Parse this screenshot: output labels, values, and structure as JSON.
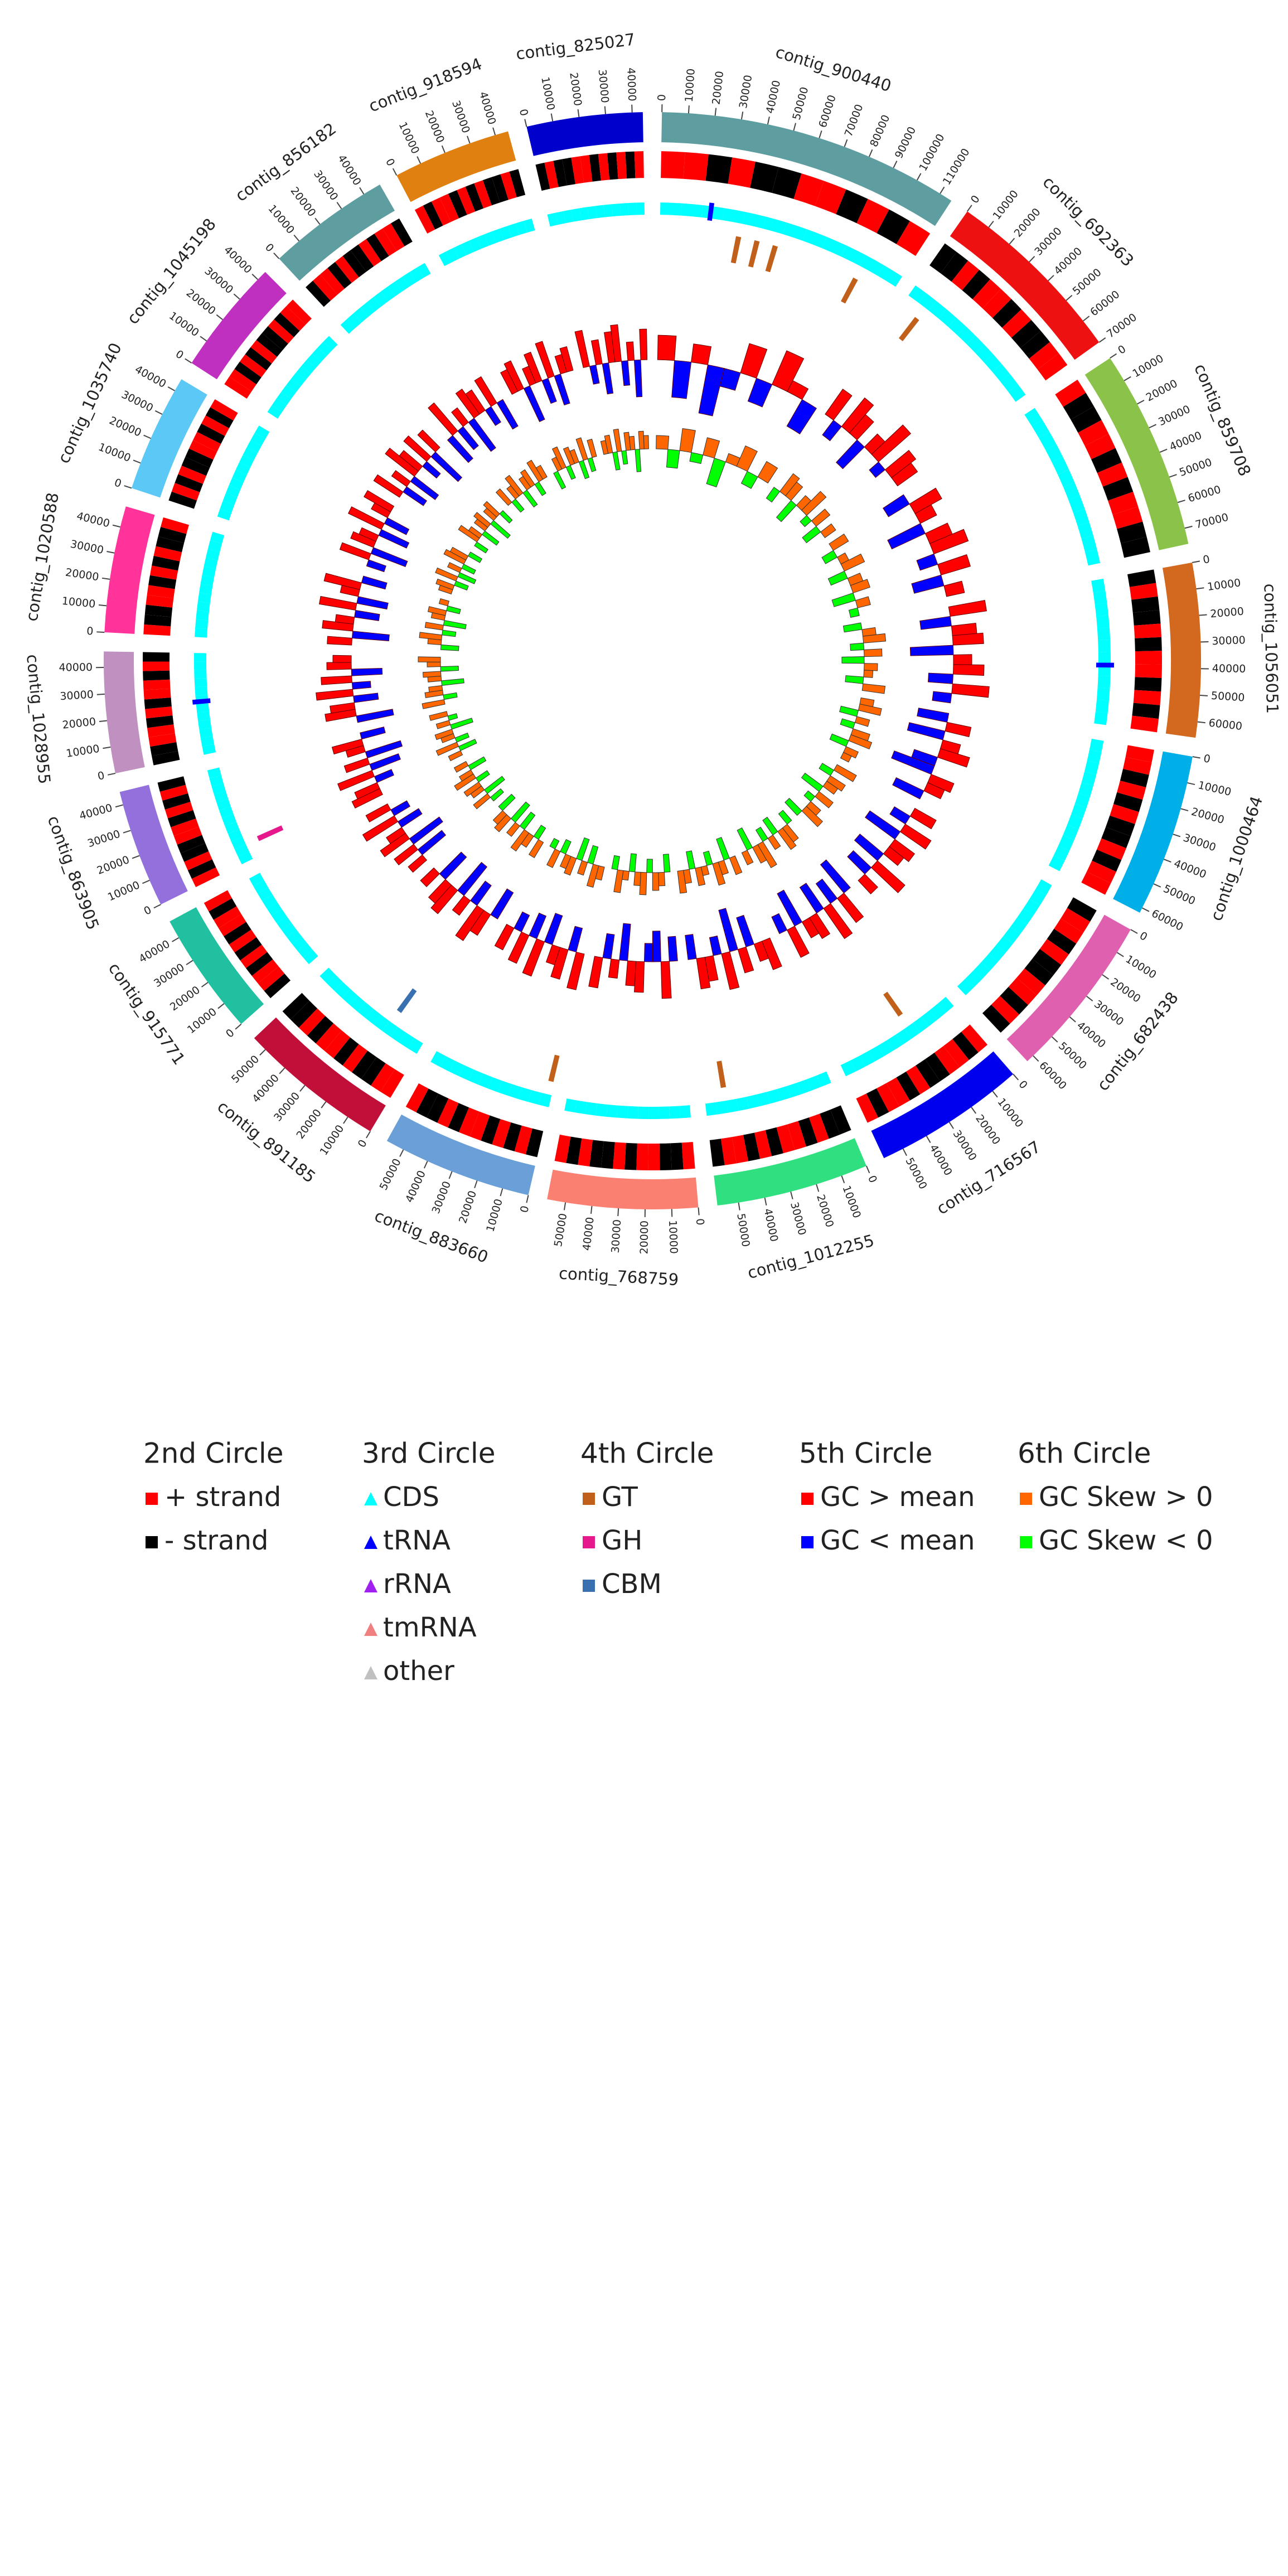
{
  "chart_data": {
    "type": "circos",
    "contigs": [
      {
        "name": "contig_900440",
        "length": 115000,
        "color": "#5f9ea0",
        "ticks": [
          0,
          10000,
          20000,
          30000,
          40000,
          50000,
          60000,
          70000,
          80000,
          90000,
          100000,
          110000
        ],
        "strand": [
          1,
          1,
          -1,
          1,
          -1,
          -1,
          1,
          1,
          -1,
          1,
          -1,
          1
        ],
        "gc": [
          0.4,
          -0.6,
          0.3,
          -0.8,
          -0.3,
          0.5,
          -0.4,
          0.6,
          0.2,
          -0.5
        ],
        "skew": [
          0.3,
          -0.4,
          0.5,
          -0.2,
          0.4,
          -0.6,
          0.2,
          0.5,
          -0.3,
          0.4
        ]
      },
      {
        "name": "contig_692363",
        "length": 70000,
        "color": "#ee1111",
        "ticks": [
          0,
          10000,
          20000,
          30000,
          40000,
          50000,
          60000,
          70000
        ],
        "strand": [
          -1,
          -1,
          1,
          -1,
          1,
          1,
          -1,
          1,
          -1,
          -1,
          1,
          1
        ],
        "gc": [
          0.5,
          -0.3,
          0.6,
          0.4,
          -0.5,
          0.3,
          0.7,
          -0.2,
          0.5,
          0.4
        ],
        "skew": [
          -0.3,
          0.5,
          0.4,
          -0.5,
          0.3,
          0.6,
          -0.2,
          0.4,
          -0.4,
          0.3
        ]
      },
      {
        "name": "contig_859708",
        "length": 76000,
        "color": "#8bc34a",
        "ticks": [
          0,
          10000,
          20000,
          30000,
          40000,
          50000,
          60000,
          70000
        ],
        "strand": [
          1,
          -1,
          -1,
          1,
          1,
          -1,
          1,
          -1,
          1,
          1,
          -1,
          -1
        ],
        "gc": [
          -0.4,
          0.5,
          0.3,
          -0.6,
          0.4,
          0.6,
          -0.3,
          0.5,
          -0.5,
          0.3
        ],
        "skew": [
          0.4,
          -0.3,
          0.2,
          0.5,
          -0.4,
          0.3,
          0.4,
          -0.5,
          0.3,
          -0.2
        ]
      },
      {
        "name": "contig_1056051",
        "length": 66000,
        "color": "#d2691e",
        "ticks": [
          0,
          10000,
          20000,
          30000,
          40000,
          50000,
          60000
        ],
        "strand": [
          -1,
          1,
          -1,
          -1,
          1,
          -1,
          1,
          1,
          -1,
          1,
          -1,
          1
        ],
        "gc": [
          0.6,
          -0.5,
          0.4,
          0.5,
          -0.7,
          0.3,
          0.5,
          -0.4,
          0.6,
          -0.3
        ],
        "skew": [
          -0.4,
          0.3,
          0.5,
          -0.3,
          0.4,
          -0.5,
          0.3,
          0.2,
          -0.4,
          0.5
        ]
      },
      {
        "name": "contig_1000464",
        "length": 62000,
        "color": "#00aee8",
        "ticks": [
          0,
          10000,
          20000,
          30000,
          40000,
          50000,
          60000
        ],
        "strand": [
          1,
          1,
          -1,
          1,
          -1,
          1,
          -1,
          -1,
          1,
          -1,
          1,
          1
        ],
        "gc": [
          -0.5,
          0.4,
          -0.6,
          0.3,
          0.5,
          -0.4,
          -0.7,
          0.4,
          0.3,
          -0.5
        ],
        "skew": [
          0.3,
          0.5,
          -0.4,
          0.3,
          -0.3,
          0.4,
          0.5,
          -0.4,
          0.3,
          0.2
        ]
      },
      {
        "name": "contig_682438",
        "length": 63000,
        "color": "#e060b0",
        "ticks": [
          0,
          10000,
          20000,
          30000,
          40000,
          50000,
          60000
        ],
        "strand": [
          -1,
          1,
          1,
          -1,
          1,
          -1,
          -1,
          1,
          1,
          -1,
          1,
          -1
        ],
        "gc": [
          0.4,
          -0.3,
          0.5,
          -0.6,
          0.4,
          0.3,
          -0.5,
          0.6,
          -0.4,
          0.3
        ],
        "skew": [
          0.5,
          -0.3,
          0.4,
          0.3,
          -0.5,
          0.4,
          -0.2,
          0.3,
          0.5,
          -0.4
        ]
      },
      {
        "name": "contig_716567",
        "length": 58000,
        "color": "#0000ee",
        "ticks": [
          0,
          10000,
          20000,
          30000,
          40000,
          50000
        ],
        "strand": [
          1,
          -1,
          1,
          1,
          -1,
          -1,
          1,
          -1,
          1,
          1,
          -1,
          1
        ],
        "gc": [
          -0.6,
          0.5,
          -0.4,
          0.6,
          -0.5,
          0.4,
          0.3,
          -0.6,
          0.5,
          -0.3
        ],
        "skew": [
          -0.3,
          0.4,
          0.5,
          -0.4,
          0.3,
          -0.3,
          0.6,
          0.4,
          -0.5,
          0.3
        ]
      },
      {
        "name": "contig_1012255",
        "length": 58000,
        "color": "#30e080",
        "ticks": [
          0,
          10000,
          20000,
          30000,
          40000,
          50000
        ],
        "strand": [
          -1,
          -1,
          1,
          -1,
          1,
          1,
          -1,
          1,
          -1,
          1,
          1,
          -1
        ],
        "gc": [
          0.5,
          0.3,
          -0.5,
          0.4,
          -0.7,
          0.6,
          -0.3,
          0.4,
          0.5,
          -0.4
        ],
        "skew": [
          0.4,
          -0.5,
          0.3,
          0.5,
          -0.3,
          0.2,
          0.4,
          -0.4,
          0.3,
          0.5
        ]
      },
      {
        "name": "contig_768759",
        "length": 57000,
        "color": "#fa8072",
        "ticks": [
          0,
          10000,
          20000,
          30000,
          40000,
          50000
        ],
        "strand": [
          1,
          -1,
          -1,
          1,
          1,
          -1,
          1,
          -1,
          -1,
          1,
          -1,
          1
        ],
        "gc": [
          -0.4,
          0.6,
          -0.5,
          -0.3,
          0.5,
          0.4,
          -0.6,
          0.3,
          -0.4,
          0.5
        ],
        "skew": [
          -0.4,
          0.3,
          0.4,
          -0.3,
          0.5,
          0.3,
          -0.4,
          0.2,
          0.5,
          -0.3
        ]
      },
      {
        "name": "contig_883660",
        "length": 57000,
        "color": "#6a9fd8",
        "ticks": [
          0,
          10000,
          20000,
          30000,
          40000,
          50000
        ],
        "strand": [
          -1,
          1,
          -1,
          1,
          -1,
          1,
          1,
          -1,
          1,
          -1,
          -1,
          1
        ],
        "gc": [
          0.6,
          -0.4,
          0.5,
          0.3,
          -0.5,
          0.6,
          -0.4,
          0.5,
          -0.3,
          0.4
        ],
        "skew": [
          0.3,
          0.5,
          -0.4,
          0.3,
          -0.5,
          0.4,
          0.3,
          -0.3,
          0.4,
          -0.2
        ]
      },
      {
        "name": "contig_891185",
        "length": 56000,
        "color": "#c0103a",
        "ticks": [
          0,
          10000,
          20000,
          30000,
          40000,
          50000
        ],
        "strand": [
          1,
          1,
          -1,
          -1,
          1,
          -1,
          1,
          1,
          -1,
          1,
          -1,
          -1
        ],
        "gc": [
          -0.5,
          0.4,
          0.6,
          -0.4,
          0.3,
          -0.6,
          0.5,
          0.4,
          -0.5,
          0.3
        ],
        "skew": [
          0.4,
          -0.3,
          0.3,
          0.5,
          -0.4,
          0.3,
          -0.5,
          0.4,
          0.3,
          -0.4
        ]
      },
      {
        "name": "contig_915771",
        "length": 47000,
        "color": "#20c0a0",
        "ticks": [
          0,
          10000,
          20000,
          30000,
          40000
        ],
        "strand": [
          -1,
          1,
          1,
          -1,
          1,
          -1,
          1,
          -1,
          1,
          1,
          -1,
          1
        ],
        "gc": [
          0.3,
          -0.5,
          0.4,
          -0.6,
          0.5,
          0.3,
          -0.4,
          0.6,
          -0.3,
          0.4
        ],
        "skew": [
          -0.3,
          0.4,
          -0.5,
          0.3,
          0.4,
          -0.3,
          0.5,
          0.3,
          -0.4,
          0.3
        ]
      },
      {
        "name": "contig_863905",
        "length": 45000,
        "color": "#9370db",
        "ticks": [
          0,
          10000,
          20000,
          30000,
          40000
        ],
        "strand": [
          1,
          -1,
          1,
          -1,
          -1,
          1,
          1,
          -1,
          1,
          -1,
          1,
          -1
        ],
        "gc": [
          0.5,
          0.4,
          -0.3,
          0.6,
          -0.5,
          0.4,
          -0.6,
          0.3,
          0.5,
          -0.4
        ],
        "skew": [
          0.3,
          -0.4,
          0.5,
          -0.3,
          0.3,
          0.4,
          -0.5,
          0.3,
          -0.2,
          0.4
        ]
      },
      {
        "name": "contig_1028955",
        "length": 46000,
        "color": "#c090c0",
        "ticks": [
          0,
          10000,
          20000,
          30000,
          40000
        ],
        "strand": [
          -1,
          -1,
          1,
          1,
          -1,
          1,
          -1,
          1,
          1,
          -1,
          1,
          -1
        ],
        "gc": [
          -0.6,
          0.5,
          0.4,
          -0.4,
          0.6,
          -0.3,
          0.5,
          -0.5,
          0.4,
          0.3
        ],
        "skew": [
          0.5,
          -0.3,
          0.4,
          0.3,
          -0.5,
          0.3,
          0.4,
          -0.4,
          0.3,
          0.5
        ]
      },
      {
        "name": "contig_1020588",
        "length": 48000,
        "color": "#ff3399",
        "ticks": [
          0,
          10000,
          20000,
          30000,
          40000
        ],
        "strand": [
          1,
          -1,
          -1,
          1,
          1,
          -1,
          1,
          -1,
          1,
          -1,
          -1,
          1
        ],
        "gc": [
          0.4,
          -0.6,
          0.5,
          0.3,
          -0.4,
          0.6,
          -0.5,
          0.3,
          0.6,
          -0.4
        ],
        "skew": [
          -0.4,
          0.3,
          0.5,
          -0.3,
          0.4,
          -0.5,
          0.3,
          0.4,
          -0.3,
          0.2
        ]
      },
      {
        "name": "contig_1035740",
        "length": 45000,
        "color": "#5bc8f5",
        "ticks": [
          0,
          10000,
          20000,
          30000,
          40000
        ],
        "strand": [
          -1,
          1,
          -1,
          1,
          -1,
          -1,
          1,
          1,
          -1,
          1,
          -1,
          1
        ],
        "gc": [
          -0.3,
          0.5,
          -0.6,
          0.4,
          0.3,
          -0.5,
          0.6,
          -0.4,
          0.3,
          0.5
        ],
        "skew": [
          0.3,
          0.4,
          -0.3,
          0.5,
          -0.4,
          0.3,
          -0.3,
          0.5,
          0.4,
          -0.3
        ]
      },
      {
        "name": "contig_1045198",
        "length": 44000,
        "color": "#c030c0",
        "ticks": [
          0,
          10000,
          20000,
          30000,
          40000
        ],
        "strand": [
          1,
          1,
          -1,
          1,
          -1,
          1,
          -1,
          -1,
          1,
          -1,
          1,
          1
        ],
        "gc": [
          0.5,
          -0.4,
          0.3,
          -0.5,
          0.6,
          0.4,
          -0.3,
          0.5,
          -0.6,
          0.4
        ],
        "skew": [
          -0.3,
          0.5,
          0.3,
          -0.4,
          0.3,
          0.4,
          -0.5,
          0.3,
          0.4,
          -0.3
        ]
      },
      {
        "name": "contig_856182",
        "length": 47000,
        "color": "#5f9ea0",
        "ticks": [
          0,
          10000,
          20000,
          30000,
          40000
        ],
        "strand": [
          -1,
          1,
          1,
          -1,
          1,
          -1,
          -1,
          1,
          -1,
          1,
          1,
          -1
        ],
        "gc": [
          -0.5,
          0.6,
          -0.4,
          0.3,
          -0.6,
          0.5,
          0.4,
          -0.3,
          0.5,
          -0.5
        ],
        "skew": [
          0.4,
          -0.3,
          0.3,
          0.5,
          -0.4,
          0.3,
          0.4,
          -0.3,
          0.5,
          0.3
        ]
      },
      {
        "name": "contig_918594",
        "length": 45000,
        "color": "#e08010",
        "ticks": [
          0,
          10000,
          20000,
          30000,
          40000
        ],
        "strand": [
          1,
          -1,
          1,
          1,
          -1,
          1,
          -1,
          1,
          -1,
          -1,
          1,
          -1
        ],
        "gc": [
          0.4,
          0.5,
          -0.6,
          0.3,
          0.5,
          -0.4,
          0.6,
          -0.5,
          0.3,
          0.4
        ],
        "skew": [
          -0.4,
          0.3,
          0.5,
          -0.3,
          0.4,
          0.3,
          -0.4,
          0.5,
          -0.3,
          0.4
        ]
      },
      {
        "name": "contig_825027",
        "length": 44000,
        "color": "#0000cc",
        "ticks": [
          0,
          10000,
          20000,
          30000,
          40000
        ],
        "strand": [
          -1,
          1,
          -1,
          -1,
          1,
          1,
          -1,
          1,
          -1,
          1,
          -1,
          1
        ],
        "gc": [
          0.6,
          -0.3,
          0.4,
          -0.5,
          0.5,
          0.6,
          -0.4,
          0.3,
          -0.6,
          0.5
        ],
        "skew": [
          0.3,
          0.4,
          -0.4,
          0.5,
          -0.3,
          0.4,
          0.3,
          -0.5,
          0.4,
          0.3
        ]
      }
    ],
    "trna": [
      {
        "contig": 0,
        "pos": 23000
      },
      {
        "contig": 3,
        "pos": 39000
      },
      {
        "contig": 13,
        "pos": 24000
      }
    ],
    "cazy": [
      {
        "contig": 0,
        "pos": 37700,
        "type": "GT"
      },
      {
        "contig": 0,
        "pos": 46700,
        "type": "GT"
      },
      {
        "contig": 0,
        "pos": 55700,
        "type": "GT"
      },
      {
        "contig": 0,
        "pos": 97000,
        "type": "GT"
      },
      {
        "contig": 1,
        "pos": 9700,
        "type": "GT"
      },
      {
        "contig": 6,
        "pos": 21900,
        "type": "GT"
      },
      {
        "contig": 7,
        "pos": 48500,
        "type": "GT"
      },
      {
        "contig": 9,
        "pos": 1800,
        "type": "GT"
      },
      {
        "contig": 10,
        "pos": 17600,
        "type": "CBM"
      },
      {
        "contig": 12,
        "pos": 7500,
        "type": "GH"
      }
    ],
    "legend": [
      {
        "title": "2nd Circle",
        "items": [
          {
            "label": "+ strand",
            "color": "#ff0000",
            "shape": "square"
          },
          {
            "label": "- strand",
            "color": "#000000",
            "shape": "square"
          }
        ]
      },
      {
        "title": "3rd Circle",
        "items": [
          {
            "label": "CDS",
            "color": "#00ffff",
            "shape": "triangle"
          },
          {
            "label": "tRNA",
            "color": "#0000ff",
            "shape": "triangle"
          },
          {
            "label": "rRNA",
            "color": "#a020f0",
            "shape": "triangle"
          },
          {
            "label": "tmRNA",
            "color": "#f08080",
            "shape": "triangle"
          },
          {
            "label": "other",
            "color": "#c0c0c0",
            "shape": "triangle"
          }
        ]
      },
      {
        "title": "4th Circle",
        "items": [
          {
            "label": "GT",
            "color": "#c0601a",
            "shape": "square"
          },
          {
            "label": "GH",
            "color": "#e6198c",
            "shape": "square"
          },
          {
            "label": "CBM",
            "color": "#3870b0",
            "shape": "square"
          }
        ]
      },
      {
        "title": "5th Circle",
        "items": [
          {
            "label": "GC > mean",
            "color": "#ff0000",
            "shape": "square"
          },
          {
            "label": "GC < mean",
            "color": "#0000ff",
            "shape": "square"
          }
        ]
      },
      {
        "title": "6th Circle",
        "items": [
          {
            "label": "GC Skew > 0",
            "color": "#ff6600",
            "shape": "square"
          },
          {
            "label": "GC Skew < 0",
            "color": "#00ff00",
            "shape": "square"
          }
        ]
      }
    ]
  }
}
